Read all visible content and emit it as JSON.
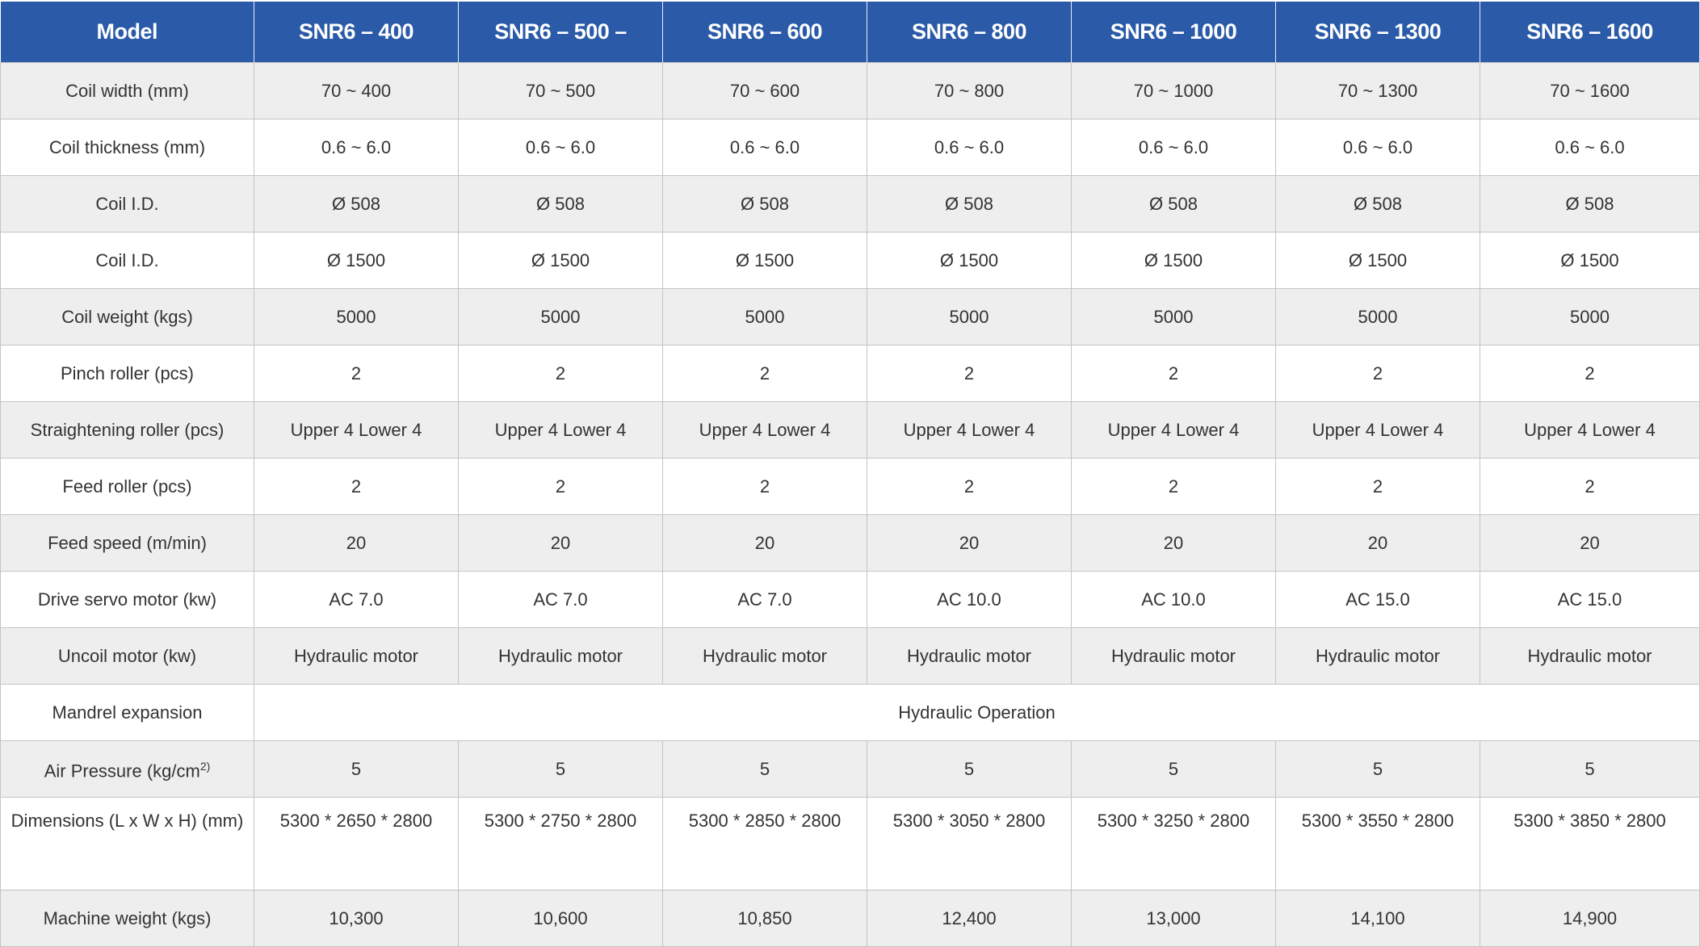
{
  "table": {
    "header": [
      "Model",
      "SNR6 – 400",
      "SNR6 – 500 –",
      "SNR6 – 600",
      "SNR6 – 800",
      "SNR6 – 1000",
      "SNR6 – 1300",
      "SNR6 – 1600"
    ],
    "colors": {
      "header_bg": "#2a5aa8",
      "alt_row_bg": "#eeeeee",
      "text": "#333333"
    },
    "rows": [
      {
        "label": "Coil width (mm)",
        "values": [
          "70 ~ 400",
          "70 ~ 500",
          "70 ~ 600",
          "70 ~ 800",
          "70 ~ 1000",
          "70 ~ 1300",
          "70 ~ 1600"
        ]
      },
      {
        "label": "Coil thickness (mm)",
        "values": [
          "0.6 ~ 6.0",
          "0.6 ~ 6.0",
          "0.6 ~ 6.0",
          "0.6 ~ 6.0",
          "0.6 ~ 6.0",
          "0.6 ~ 6.0",
          "0.6 ~ 6.0"
        ]
      },
      {
        "label": "Coil I.D.",
        "values": [
          "Ø 508",
          "Ø 508",
          "Ø 508",
          "Ø 508",
          "Ø 508",
          "Ø 508",
          "Ø 508"
        ]
      },
      {
        "label": "Coil I.D.",
        "values": [
          "Ø 1500",
          "Ø 1500",
          "Ø 1500",
          "Ø 1500",
          "Ø 1500",
          "Ø 1500",
          "Ø 1500"
        ]
      },
      {
        "label": "Coil weight (kgs)",
        "values": [
          "5000",
          "5000",
          "5000",
          "5000",
          "5000",
          "5000",
          "5000"
        ]
      },
      {
        "label": "Pinch roller (pcs)",
        "values": [
          "2",
          "2",
          "2",
          "2",
          "2",
          "2",
          "2"
        ]
      },
      {
        "label": "Straightening roller (pcs)",
        "values": [
          "Upper 4 Lower 4",
          "Upper 4 Lower 4",
          "Upper 4 Lower 4",
          "Upper 4 Lower 4",
          "Upper 4 Lower 4",
          "Upper 4 Lower 4",
          "Upper 4 Lower 4"
        ]
      },
      {
        "label": "Feed roller (pcs)",
        "values": [
          "2",
          "2",
          "2",
          "2",
          "2",
          "2",
          "2"
        ]
      },
      {
        "label": "Feed speed (m/min)",
        "values": [
          "20",
          "20",
          "20",
          "20",
          "20",
          "20",
          "20"
        ]
      },
      {
        "label": "Drive servo motor (kw)",
        "values": [
          "AC 7.0",
          "AC 7.0",
          "AC 7.0",
          "AC 10.0",
          "AC 10.0",
          "AC 15.0",
          "AC 15.0"
        ]
      },
      {
        "label": "Uncoil motor (kw)",
        "values": [
          "Hydraulic motor",
          "Hydraulic motor",
          "Hydraulic motor",
          "Hydraulic motor",
          "Hydraulic motor",
          "Hydraulic motor",
          "Hydraulic motor"
        ]
      },
      {
        "label": "Mandrel expansion",
        "merged": "Hydraulic Operation"
      },
      {
        "label": "Air Pressure (kg/cm",
        "label_sup": "2)",
        "values": [
          "5",
          "5",
          "5",
          "5",
          "5",
          "5",
          "5"
        ]
      },
      {
        "label": "Dimensions (L x W x H) (mm)",
        "values": [
          "5300 * 2650 * 2800",
          "5300 * 2750 * 2800",
          "5300 * 2850 * 2800",
          "5300 * 3050 * 2800",
          "5300 * 3250 * 2800",
          "5300 * 3550 * 2800",
          "5300 * 3850 * 2800"
        ]
      },
      {
        "label": "Machine weight (kgs)",
        "values": [
          "10,300",
          "10,600",
          "10,850",
          "12,400",
          "13,000",
          "14,100",
          "14,900"
        ]
      }
    ]
  }
}
